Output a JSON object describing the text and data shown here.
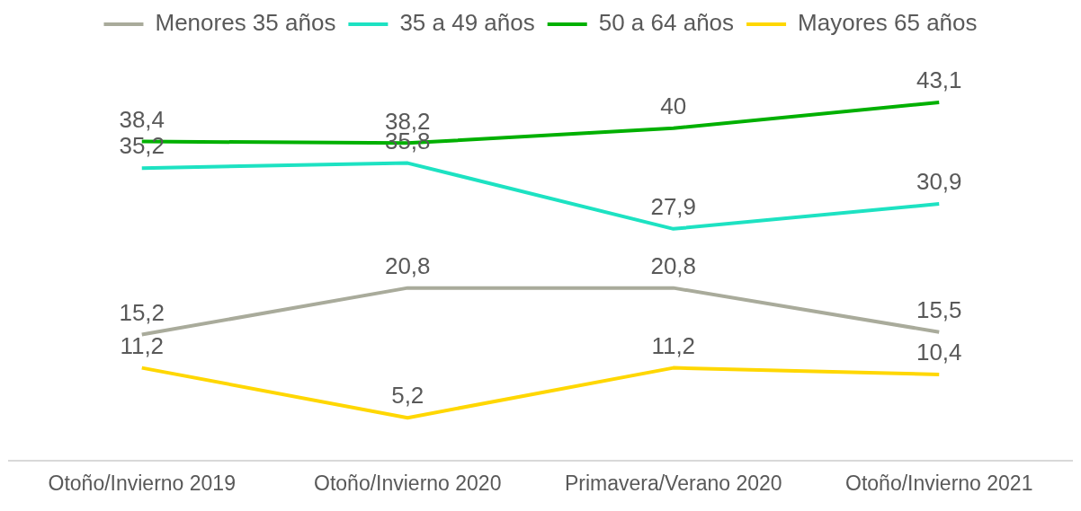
{
  "chart_data": {
    "type": "line",
    "categories": [
      "Otoño/Invierno 2019",
      "Otoño/Invierno 2020",
      "Primavera/Verano 2020",
      "Otoño/Invierno 2021"
    ],
    "series": [
      {
        "name": "Menores 35 años",
        "color": "#a9ab9b",
        "values": [
          15.2,
          20.8,
          20.8,
          15.5
        ],
        "value_labels": [
          "15,2",
          "20,8",
          "20,8",
          "15,5"
        ]
      },
      {
        "name": "35 a 49 años",
        "color": "#1de2c2",
        "values": [
          35.2,
          35.8,
          27.9,
          30.9
        ],
        "value_labels": [
          "35,2",
          "35,8",
          "27,9",
          "30,9"
        ]
      },
      {
        "name": "50 a 64 años",
        "color": "#00b000",
        "values": [
          38.4,
          38.2,
          40,
          43.1
        ],
        "value_labels": [
          "38,4",
          "38,2",
          "40",
          "43,1"
        ]
      },
      {
        "name": "Mayores 65 años",
        "color": "#ffd700",
        "values": [
          11.2,
          5.2,
          11.2,
          10.4
        ],
        "value_labels": [
          "11,2",
          "5,2",
          "11,2",
          "10,4"
        ]
      }
    ],
    "legend": "top",
    "grid": false,
    "marker": "none",
    "line_style": "solid"
  }
}
